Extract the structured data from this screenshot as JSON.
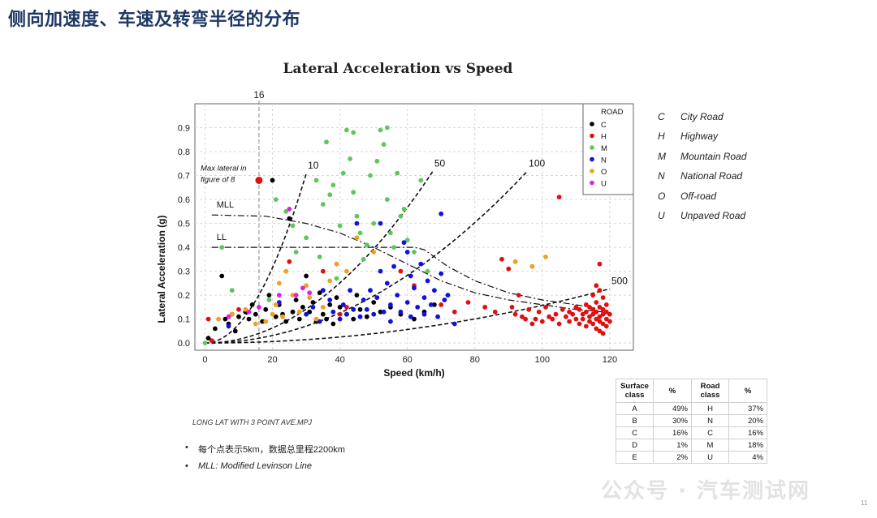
{
  "slide": {
    "title": "侧向加速度、车速及转弯半径的分布",
    "page_number": "11",
    "caption": "LONG LAT WITH 3 POINT AVE.MPJ",
    "bullets": [
      {
        "text": "每个点表示5km，数据总里程2200km",
        "italic": false
      },
      {
        "text": "MLL: Modified Levinson Line",
        "italic": true
      }
    ],
    "watermark": "公众号 · 汽车测试网"
  },
  "road_legend": [
    {
      "code": "C",
      "name": "City Road"
    },
    {
      "code": "H",
      "name": "Highway"
    },
    {
      "code": "M",
      "name": "Mountain Road"
    },
    {
      "code": "N",
      "name": "National Road"
    },
    {
      "code": "O",
      "name": "Off-road"
    },
    {
      "code": "U",
      "name": "Unpaved Road"
    }
  ],
  "table": {
    "headers": [
      "Surface class",
      "%",
      "Road class",
      "%"
    ],
    "rows": [
      [
        "A",
        "49%",
        "H",
        "37%"
      ],
      [
        "B",
        "30%",
        "N",
        "20%"
      ],
      [
        "C",
        "16%",
        "C",
        "16%"
      ],
      [
        "D",
        "1%",
        "M",
        "18%"
      ],
      [
        "E",
        "2%",
        "U",
        "4%"
      ]
    ]
  },
  "chart_data": {
    "type": "scatter",
    "title": "Lateral Acceleration vs Speed",
    "xlabel": "Speed (km/h)",
    "ylabel": "Lateral Acceleration (g)",
    "xlim": [
      -3,
      127
    ],
    "ylim": [
      -0.03,
      1.0
    ],
    "x_ticks": [
      0,
      20,
      40,
      60,
      80,
      100,
      120
    ],
    "y_ticks": [
      0.0,
      0.1,
      0.2,
      0.3,
      0.4,
      0.5,
      0.6,
      0.7,
      0.8,
      0.9
    ],
    "y_tick_labels": [
      "0.0",
      "0.1",
      "0.2",
      "0.3",
      "0.4",
      "0.5",
      "0.6",
      "0.7",
      "0.8",
      "0.9"
    ],
    "grid": true,
    "legend_title": "ROAD",
    "legend_position": "top-right",
    "vline": {
      "x": 16,
      "label": "16"
    },
    "annotation": {
      "lines": [
        "Max lateral in",
        "figure of 8"
      ],
      "x": 16,
      "y": 0.68
    },
    "radius_curves": [
      {
        "label": "10",
        "radius_m": 10
      },
      {
        "label": "50",
        "radius_m": 50
      },
      {
        "label": "100",
        "radius_m": 100
      },
      {
        "label": "500",
        "radius_m": 500
      }
    ],
    "limit_lines": [
      {
        "label": "MLL",
        "points": [
          [
            2,
            0.535
          ],
          [
            18,
            0.53
          ],
          [
            30,
            0.5
          ],
          [
            40,
            0.46
          ],
          [
            50,
            0.4
          ],
          [
            60,
            0.33
          ],
          [
            70,
            0.26
          ],
          [
            80,
            0.21
          ],
          [
            90,
            0.18
          ],
          [
            100,
            0.16
          ],
          [
            110,
            0.14
          ],
          [
            118,
            0.13
          ]
        ]
      },
      {
        "label": "LL",
        "points": [
          [
            2,
            0.4
          ],
          [
            62,
            0.4
          ],
          [
            65,
            0.39
          ],
          [
            72,
            0.32
          ],
          [
            80,
            0.26
          ],
          [
            90,
            0.21
          ],
          [
            100,
            0.18
          ],
          [
            110,
            0.16
          ],
          [
            118,
            0.14
          ]
        ]
      }
    ],
    "series": [
      {
        "name": "C",
        "color": "#000000",
        "points": [
          [
            1,
            0.02
          ],
          [
            3,
            0.06
          ],
          [
            5,
            0.28
          ],
          [
            6,
            0.1
          ],
          [
            7,
            0.08
          ],
          [
            8,
            0.12
          ],
          [
            9,
            0.05
          ],
          [
            10,
            0.11
          ],
          [
            12,
            0.13
          ],
          [
            13,
            0.1
          ],
          [
            14,
            0.16
          ],
          [
            15,
            0.12
          ],
          [
            17,
            0.09
          ],
          [
            18,
            0.14
          ],
          [
            19,
            0.2
          ],
          [
            20,
            0.68
          ],
          [
            21,
            0.11
          ],
          [
            22,
            0.16
          ],
          [
            23,
            0.12
          ],
          [
            24,
            0.09
          ],
          [
            25,
            0.52
          ],
          [
            26,
            0.13
          ],
          [
            27,
            0.18
          ],
          [
            28,
            0.1
          ],
          [
            29,
            0.15
          ],
          [
            30,
            0.28
          ],
          [
            31,
            0.13
          ],
          [
            32,
            0.17
          ],
          [
            33,
            0.09
          ],
          [
            34,
            0.21
          ],
          [
            35,
            0.12
          ],
          [
            36,
            0.1
          ],
          [
            37,
            0.16
          ],
          [
            38,
            0.08
          ],
          [
            39,
            0.19
          ],
          [
            40,
            0.15
          ],
          [
            42,
            0.12
          ],
          [
            44,
            0.1
          ],
          [
            45,
            0.2
          ],
          [
            46,
            0.14
          ],
          [
            48,
            0.11
          ],
          [
            50,
            0.17
          ],
          [
            52,
            0.13
          ],
          [
            55,
            0.15
          ],
          [
            58,
            0.12
          ],
          [
            62,
            0.1
          ],
          [
            65,
            0.13
          ],
          [
            68,
            0.16
          ]
        ]
      },
      {
        "name": "H",
        "color": "#e01010",
        "points": [
          [
            1,
            0.1
          ],
          [
            2,
            0.01
          ],
          [
            10,
            0.14
          ],
          [
            25,
            0.34
          ],
          [
            35,
            0.3
          ],
          [
            40,
            0.12
          ],
          [
            42,
            0.15
          ],
          [
            58,
            0.3
          ],
          [
            62,
            0.24
          ],
          [
            70,
            0.16
          ],
          [
            74,
            0.13
          ],
          [
            78,
            0.17
          ],
          [
            83,
            0.15
          ],
          [
            86,
            0.13
          ],
          [
            88,
            0.35
          ],
          [
            90,
            0.31
          ],
          [
            91,
            0.15
          ],
          [
            92,
            0.12
          ],
          [
            93,
            0.2
          ],
          [
            94,
            0.11
          ],
          [
            95,
            0.1
          ],
          [
            96,
            0.14
          ],
          [
            97,
            0.08
          ],
          [
            98,
            0.1
          ],
          [
            99,
            0.13
          ],
          [
            100,
            0.09
          ],
          [
            101,
            0.15
          ],
          [
            102,
            0.11
          ],
          [
            103,
            0.1
          ],
          [
            104,
            0.12
          ],
          [
            105,
            0.61
          ],
          [
            105,
            0.08
          ],
          [
            106,
            0.14
          ],
          [
            107,
            0.11
          ],
          [
            108,
            0.13
          ],
          [
            108,
            0.09
          ],
          [
            109,
            0.12
          ],
          [
            110,
            0.15
          ],
          [
            110,
            0.1
          ],
          [
            111,
            0.14
          ],
          [
            111,
            0.08
          ],
          [
            112,
            0.12
          ],
          [
            112,
            0.1
          ],
          [
            113,
            0.16
          ],
          [
            113,
            0.13
          ],
          [
            113,
            0.07
          ],
          [
            114,
            0.15
          ],
          [
            114,
            0.11
          ],
          [
            114,
            0.09
          ],
          [
            115,
            0.2
          ],
          [
            115,
            0.14
          ],
          [
            115,
            0.12
          ],
          [
            115,
            0.08
          ],
          [
            116,
            0.24
          ],
          [
            116,
            0.17
          ],
          [
            116,
            0.13
          ],
          [
            116,
            0.1
          ],
          [
            116,
            0.06
          ],
          [
            117,
            0.33
          ],
          [
            117,
            0.22
          ],
          [
            117,
            0.15
          ],
          [
            117,
            0.11
          ],
          [
            117,
            0.09
          ],
          [
            117,
            0.05
          ],
          [
            118,
            0.19
          ],
          [
            118,
            0.14
          ],
          [
            118,
            0.12
          ],
          [
            118,
            0.08
          ],
          [
            118,
            0.04
          ],
          [
            119,
            0.16
          ],
          [
            119,
            0.13
          ],
          [
            119,
            0.1
          ],
          [
            119,
            0.07
          ],
          [
            120,
            0.12
          ],
          [
            120,
            0.09
          ]
        ]
      },
      {
        "name": "M",
        "color": "#5cc85c",
        "points": [
          [
            0,
            0.0
          ],
          [
            5,
            0.4
          ],
          [
            8,
            0.22
          ],
          [
            19,
            0.18
          ],
          [
            21,
            0.6
          ],
          [
            24,
            0.55
          ],
          [
            26,
            0.49
          ],
          [
            27,
            0.38
          ],
          [
            30,
            0.44
          ],
          [
            33,
            0.68
          ],
          [
            34,
            0.36
          ],
          [
            35,
            0.58
          ],
          [
            36,
            0.84
          ],
          [
            37,
            0.62
          ],
          [
            38,
            0.66
          ],
          [
            39,
            0.27
          ],
          [
            40,
            0.49
          ],
          [
            41,
            0.71
          ],
          [
            42,
            0.89
          ],
          [
            43,
            0.77
          ],
          [
            44,
            0.88
          ],
          [
            44,
            0.63
          ],
          [
            45,
            0.53
          ],
          [
            46,
            0.46
          ],
          [
            47,
            0.35
          ],
          [
            48,
            0.41
          ],
          [
            49,
            0.7
          ],
          [
            50,
            0.5
          ],
          [
            51,
            0.76
          ],
          [
            52,
            0.89
          ],
          [
            53,
            0.83
          ],
          [
            54,
            0.9
          ],
          [
            54,
            0.6
          ],
          [
            55,
            0.46
          ],
          [
            56,
            0.4
          ],
          [
            57,
            0.71
          ],
          [
            58,
            0.53
          ],
          [
            59,
            0.56
          ],
          [
            60,
            0.43
          ],
          [
            62,
            0.38
          ],
          [
            64,
            0.68
          ],
          [
            66,
            0.3
          ]
        ]
      },
      {
        "name": "N",
        "color": "#1010e0",
        "points": [
          [
            7,
            0.07
          ],
          [
            22,
            0.17
          ],
          [
            30,
            0.12
          ],
          [
            32,
            0.15
          ],
          [
            34,
            0.09
          ],
          [
            35,
            0.22
          ],
          [
            37,
            0.18
          ],
          [
            38,
            0.13
          ],
          [
            40,
            0.1
          ],
          [
            41,
            0.16
          ],
          [
            42,
            0.12
          ],
          [
            43,
            0.22
          ],
          [
            44,
            0.14
          ],
          [
            45,
            0.5
          ],
          [
            46,
            0.11
          ],
          [
            47,
            0.18
          ],
          [
            48,
            0.14
          ],
          [
            49,
            0.22
          ],
          [
            50,
            0.12
          ],
          [
            51,
            0.19
          ],
          [
            52,
            0.3
          ],
          [
            52,
            0.5
          ],
          [
            53,
            0.13
          ],
          [
            54,
            0.25
          ],
          [
            55,
            0.16
          ],
          [
            55,
            0.09
          ],
          [
            56,
            0.32
          ],
          [
            57,
            0.2
          ],
          [
            58,
            0.13
          ],
          [
            59,
            0.42
          ],
          [
            60,
            0.17
          ],
          [
            60,
            0.38
          ],
          [
            61,
            0.28
          ],
          [
            61,
            0.11
          ],
          [
            62,
            0.23
          ],
          [
            63,
            0.15
          ],
          [
            64,
            0.33
          ],
          [
            65,
            0.12
          ],
          [
            65,
            0.19
          ],
          [
            66,
            0.26
          ],
          [
            67,
            0.16
          ],
          [
            68,
            0.22
          ],
          [
            69,
            0.11
          ],
          [
            70,
            0.54
          ],
          [
            70,
            0.29
          ],
          [
            71,
            0.18
          ],
          [
            72,
            0.2
          ],
          [
            74,
            0.08
          ]
        ]
      },
      {
        "name": "O",
        "color": "#f0a020",
        "points": [
          [
            4,
            0.1
          ],
          [
            8,
            0.12
          ],
          [
            12,
            0.14
          ],
          [
            15,
            0.08
          ],
          [
            18,
            0.09
          ],
          [
            20,
            0.12
          ],
          [
            21,
            0.16
          ],
          [
            22,
            0.25
          ],
          [
            23,
            0.11
          ],
          [
            24,
            0.3
          ],
          [
            26,
            0.2
          ],
          [
            28,
            0.13
          ],
          [
            30,
            0.24
          ],
          [
            31,
            0.19
          ],
          [
            33,
            0.1
          ],
          [
            35,
            0.15
          ],
          [
            37,
            0.26
          ],
          [
            39,
            0.33
          ],
          [
            42,
            0.3
          ],
          [
            45,
            0.44
          ],
          [
            50,
            0.38
          ],
          [
            92,
            0.34
          ],
          [
            97,
            0.32
          ],
          [
            101,
            0.36
          ]
        ]
      },
      {
        "name": "U",
        "color": "#e020e0",
        "points": [
          [
            7,
            0.11
          ],
          [
            13,
            0.13
          ],
          [
            16,
            0.15
          ],
          [
            22,
            0.2
          ],
          [
            25,
            0.56
          ],
          [
            27,
            0.2
          ],
          [
            29,
            0.23
          ],
          [
            31,
            0.21
          ]
        ]
      }
    ]
  }
}
